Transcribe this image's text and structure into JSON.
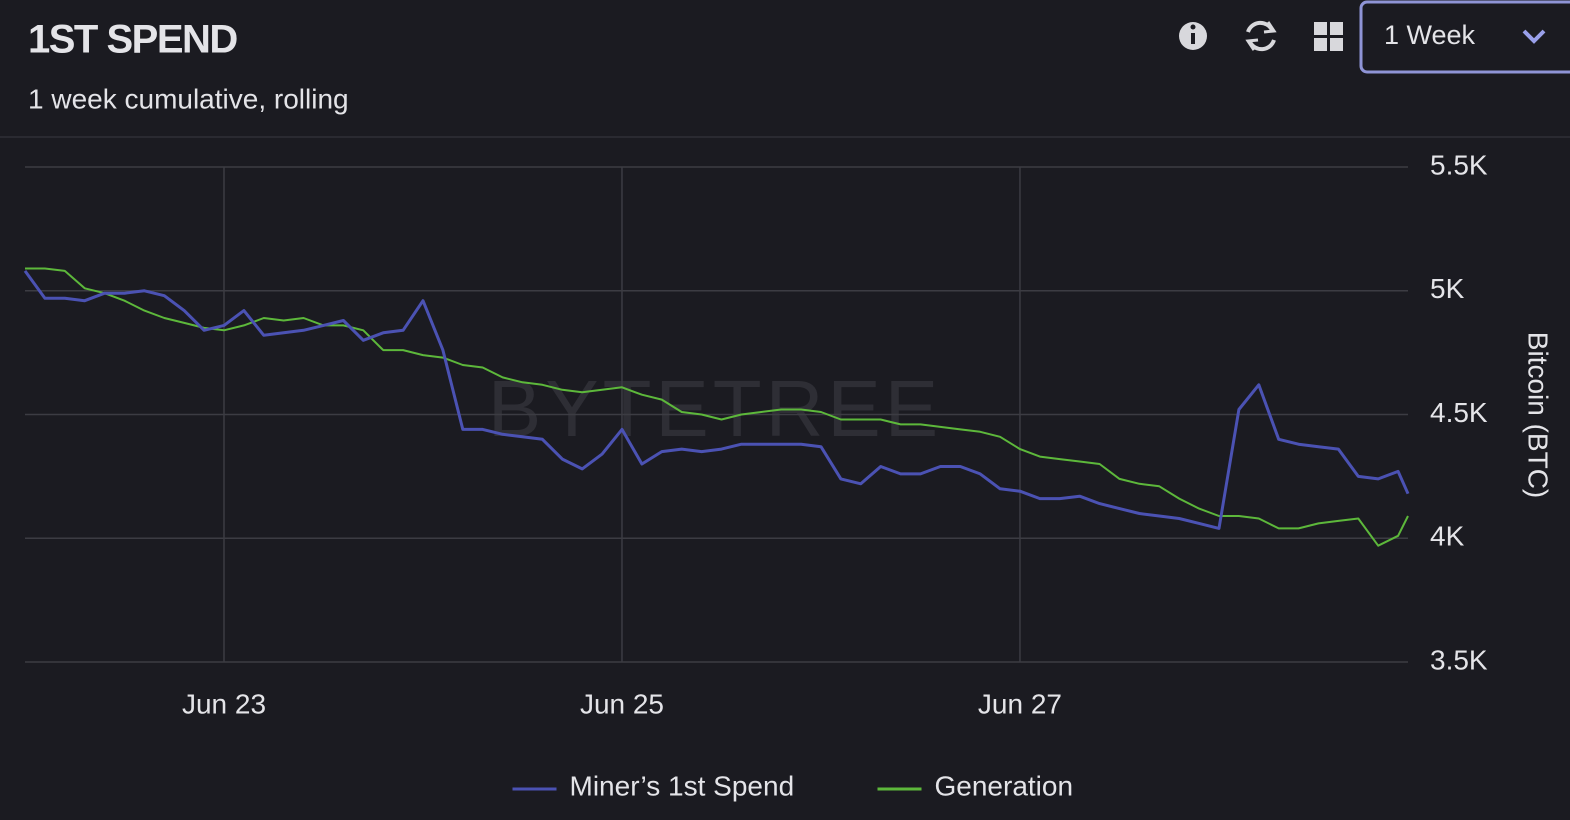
{
  "controls": {
    "range": "1 Week"
  },
  "chart_data": {
    "type": "line",
    "title": "1ST SPEND",
    "subtitle": "1 week cumulative, rolling",
    "watermark": "BYTETREE",
    "y_label": "Bitcoin (BTC)",
    "grid": true,
    "legend": "bottom",
    "x": [
      22,
      22.1,
      22.2,
      22.3,
      22.4,
      22.5,
      22.6,
      22.7,
      22.8,
      22.9,
      23,
      23.1,
      23.2,
      23.3,
      23.4,
      23.5,
      23.6,
      23.7,
      23.8,
      23.9,
      24,
      24.1,
      24.2,
      24.3,
      24.4,
      24.5,
      24.6,
      24.7,
      24.8,
      24.9,
      25,
      25.1,
      25.2,
      25.3,
      25.4,
      25.5,
      25.6,
      25.7,
      25.8,
      25.9,
      26,
      26.1,
      26.2,
      26.3,
      26.4,
      26.5,
      26.6,
      26.7,
      26.8,
      26.9,
      27,
      27.1,
      27.2,
      27.3,
      27.4,
      27.5,
      27.6,
      27.7,
      27.8,
      27.9,
      28,
      28.1,
      28.2,
      28.3,
      28.4,
      28.5,
      28.6,
      28.7,
      28.8,
      28.9,
      28.95
    ],
    "xlim": [
      22,
      28.95
    ],
    "xticks": [
      {
        "value": 23,
        "label": "Jun 23"
      },
      {
        "value": 25,
        "label": "Jun 25"
      },
      {
        "value": 27,
        "label": "Jun 27"
      }
    ],
    "ylim": [
      3500,
      5500
    ],
    "yticks": [
      {
        "value": 3500,
        "label": "3.5K"
      },
      {
        "value": 4000,
        "label": "4K"
      },
      {
        "value": 4500,
        "label": "4.5K"
      },
      {
        "value": 5000,
        "label": "5K"
      },
      {
        "value": 5500,
        "label": "5.5K"
      }
    ],
    "series": [
      {
        "name": "Miner’s 1st Spend",
        "color": "#4b52b3",
        "values": [
          5080,
          4970,
          4970,
          4960,
          4990,
          4990,
          5000,
          4980,
          4920,
          4840,
          4860,
          4920,
          4820,
          4830,
          4840,
          4860,
          4880,
          4800,
          4830,
          4840,
          4960,
          4760,
          4440,
          4440,
          4420,
          4410,
          4400,
          4320,
          4280,
          4340,
          4440,
          4300,
          4350,
          4360,
          4350,
          4360,
          4380,
          4380,
          4380,
          4380,
          4370,
          4240,
          4220,
          4290,
          4260,
          4260,
          4290,
          4290,
          4260,
          4200,
          4190,
          4160,
          4160,
          4170,
          4140,
          4120,
          4100,
          4090,
          4080,
          4060,
          4040,
          4520,
          4620,
          4400,
          4380,
          4370,
          4360,
          4250,
          4240,
          4270,
          4180
        ]
      },
      {
        "name": "Generation",
        "color": "#5db83b",
        "values": [
          5090,
          5090,
          5080,
          5010,
          4990,
          4960,
          4920,
          4890,
          4870,
          4850,
          4840,
          4860,
          4890,
          4880,
          4890,
          4860,
          4860,
          4840,
          4760,
          4760,
          4740,
          4730,
          4700,
          4690,
          4650,
          4630,
          4620,
          4600,
          4590,
          4600,
          4610,
          4580,
          4560,
          4510,
          4500,
          4480,
          4500,
          4510,
          4520,
          4520,
          4510,
          4480,
          4480,
          4480,
          4460,
          4460,
          4450,
          4440,
          4430,
          4410,
          4360,
          4330,
          4320,
          4310,
          4300,
          4240,
          4220,
          4210,
          4160,
          4120,
          4090,
          4090,
          4080,
          4040,
          4040,
          4060,
          4070,
          4080,
          3970,
          4010,
          4090
        ]
      }
    ]
  }
}
